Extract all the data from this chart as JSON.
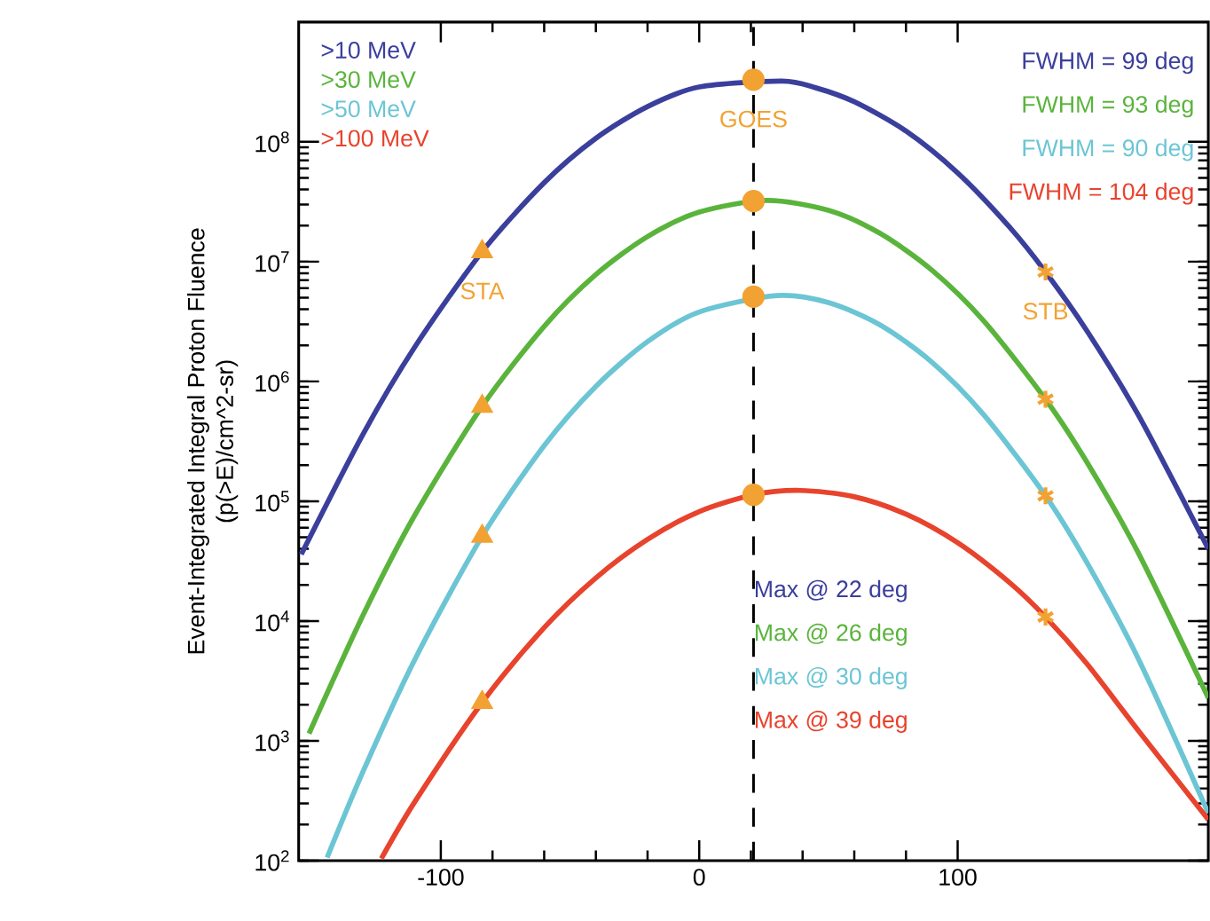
{
  "chart_data": {
    "type": "line",
    "xlabel": null,
    "ylabel": "Event-Integrated Integral Proton Fluence (p(>E)/cm^2-sr)",
    "log": "y",
    "xlim": [
      -155,
      197
    ],
    "ylim": [
      100,
      1000000000
    ],
    "xticks": [
      -100,
      0,
      100
    ],
    "yticks": [
      {
        "value": 100,
        "label": "10$^{2}$"
      },
      {
        "value": 1000,
        "label": "10$^{3}$"
      },
      {
        "value": 10000,
        "label": "10$^{4}$"
      },
      {
        "value": 100000,
        "label": "10$^{5}$"
      },
      {
        "value": 1000000,
        "label": "10$^{6}$"
      },
      {
        "value": 10000000,
        "label": "10$^{7}$"
      },
      {
        "value": 100000000,
        "label": "10$^{8}$"
      }
    ],
    "legend": "top left",
    "line_style": "solid",
    "series": [
      {
        "name": ">10 MeV",
        "color": "#3b3f9c",
        "x": [
          -154,
          -130,
          -110,
          -84,
          -60,
          -40,
          -20,
          0,
          32,
          45,
          60,
          80,
          100,
          120,
          134,
          150,
          170,
          197
        ],
        "values": [
          36000,
          366000,
          1950000,
          12100000,
          45600000,
          107000000,
          197000000,
          287000000,
          322000000,
          283000000,
          216000000,
          123000000,
          55000000,
          19500000,
          8200000,
          2650000,
          520000,
          40000
        ]
      },
      {
        "name": ">30 MeV",
        "color": "#5ab43c",
        "x": [
          -151,
          -130,
          -110,
          -84,
          -60,
          -40,
          -20,
          0,
          26,
          50,
          70,
          90,
          110,
          134,
          150,
          170,
          197
        ],
        "values": [
          1150,
          11300,
          77000,
          620000,
          2880000,
          7800000,
          16200000,
          25900000,
          32400000,
          26800000,
          17200000,
          8500000,
          3220000,
          710000,
          212000,
          36700,
          2280
        ]
      },
      {
        "name": ">50 MeV",
        "color": "#6cc5d4",
        "x": [
          -144,
          -130,
          -110,
          -84,
          -60,
          -40,
          -20,
          0,
          30,
          50,
          70,
          90,
          110,
          134,
          150,
          170,
          197
        ],
        "values": [
          106,
          560,
          4800,
          51000,
          291000,
          910000,
          2150000,
          3800000,
          5200000,
          4550000,
          2960000,
          1450000,
          530000,
          111000,
          30800,
          4800,
          249
        ]
      },
      {
        "name": ">100 MeV",
        "color": "#e8432d",
        "x": [
          -123,
          -110,
          -84,
          -60,
          -40,
          -20,
          0,
          21,
          39,
          60,
          80,
          100,
          120,
          134,
          150,
          170,
          197
        ],
        "values": [
          104,
          311,
          2090,
          8800,
          22900,
          48000,
          82000,
          113000,
          123000,
          109000,
          78000,
          45000,
          21000,
          10800,
          4400,
          1210,
          220
        ]
      },
      {
        "type": "scatter",
        "marker": "triangle",
        "color": "#f2a232",
        "x": [
          -84,
          -84,
          -84,
          -84
        ],
        "values": [
          12100000,
          620000,
          51000,
          2090
        ]
      },
      {
        "type": "scatter",
        "marker": "circle",
        "color": "#f2a232",
        "x": [
          21,
          21,
          21,
          21
        ],
        "values": [
          330000000,
          32000000,
          5100000,
          113000
        ]
      },
      {
        "type": "scatter",
        "marker": "cross",
        "color": "#f2a232",
        "x": [
          134,
          134,
          134,
          134
        ],
        "values": [
          8200000,
          710000,
          111000,
          10800
        ]
      }
    ],
    "ref_lines": [
      {
        "axis": "x",
        "value": 21,
        "color": "#000000",
        "line_style": "dashed"
      }
    ],
    "annotations": [
      {
        "text": "STA",
        "x": -84,
        "y": 12100000
      },
      {
        "text": "GOES",
        "x": 21,
        "y": 330000000
      },
      {
        "text": "STB",
        "x": 134,
        "y": 8200000
      },
      "FWHM = 99 deg",
      "FWHM = 93 deg",
      "FWHM = 90 deg",
      "FWHM = 104 deg",
      "Max @ 22 deg",
      "Max @ 26 deg",
      "Max @ 30 deg",
      "Max @ 39 deg"
    ]
  }
}
